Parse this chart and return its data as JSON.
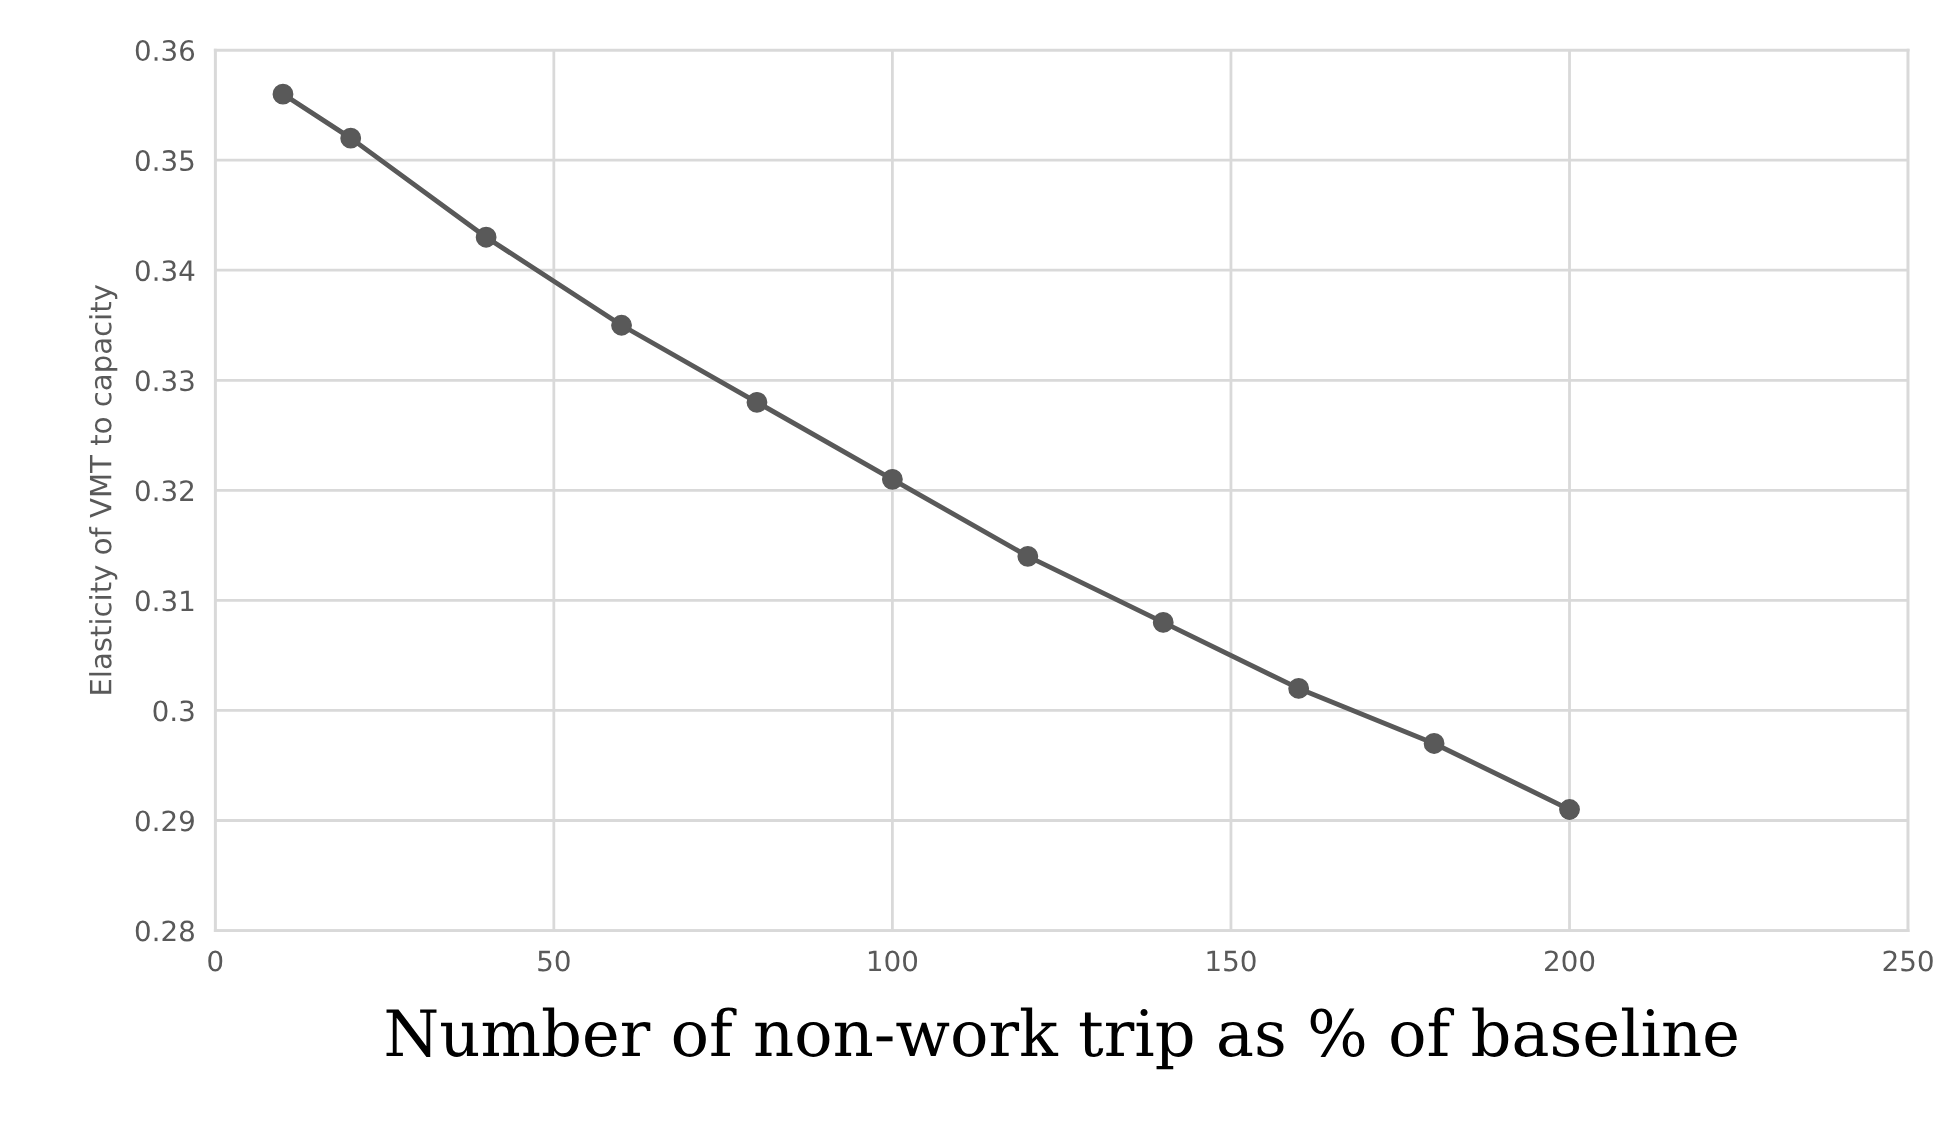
{
  "chart_data": {
    "type": "line",
    "xlabel": "Number of non-work trip as % of baseline",
    "ylabel": "Elasticity of VMT to capacity",
    "x": [
      10,
      20,
      40,
      60,
      80,
      100,
      120,
      140,
      160,
      180,
      200
    ],
    "series": [
      {
        "color": "#595959",
        "values": [
          0.356,
          0.352,
          0.343,
          0.335,
          0.328,
          0.321,
          0.314,
          0.308,
          0.302,
          0.297,
          0.291
        ]
      }
    ],
    "xlim": [
      0,
      250
    ],
    "xticks": [
      0,
      50,
      100,
      150,
      200,
      250
    ],
    "ylim": [
      0.28,
      0.36
    ],
    "yticks": [
      {
        "value": 0.28,
        "label": "0.28"
      },
      {
        "value": 0.29,
        "label": "0.29"
      },
      {
        "value": 0.3,
        "label": "0.3"
      },
      {
        "value": 0.31,
        "label": "0.31"
      },
      {
        "value": 0.32,
        "label": "0.32"
      },
      {
        "value": 0.33,
        "label": "0.33"
      },
      {
        "value": 0.34,
        "label": "0.34"
      },
      {
        "value": 0.35,
        "label": "0.35"
      },
      {
        "value": 0.36,
        "label": "0.36"
      }
    ],
    "grid": true,
    "marker": "circle",
    "line_style": "solid",
    "legend": false
  }
}
